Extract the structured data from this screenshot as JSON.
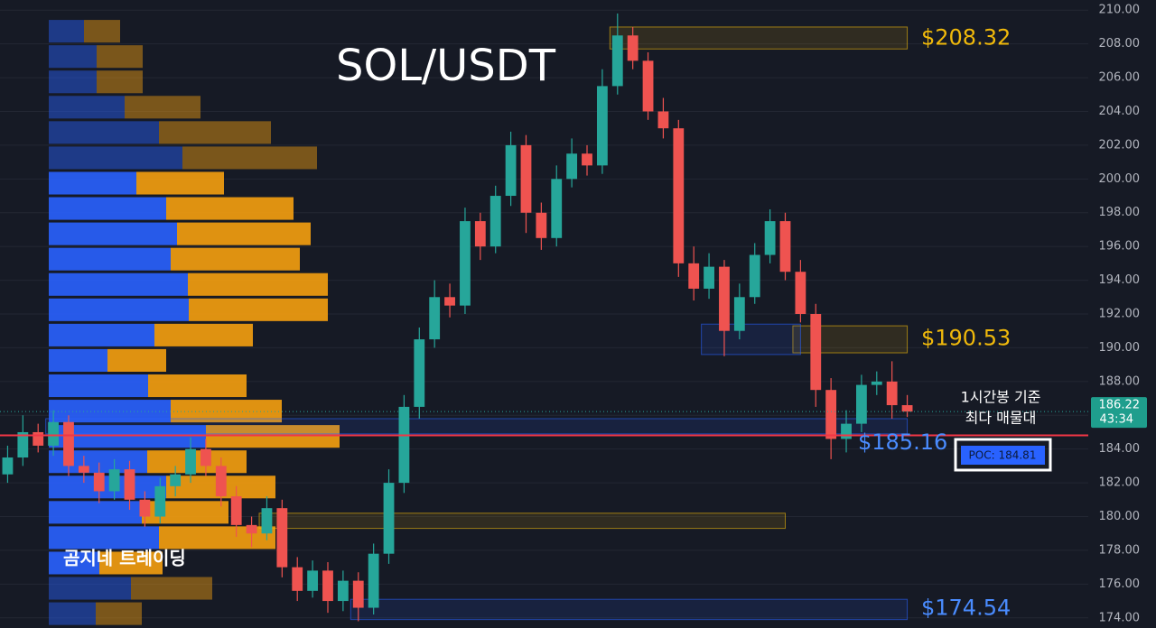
{
  "chart_data": {
    "type": "candlestick",
    "title": "SOL/USDT",
    "watermark": "곰지네 트레이딩",
    "annotation": [
      "1시간봉 기준",
      "최다 매물대"
    ],
    "ylim": [
      173.4,
      210.6
    ],
    "yticks": [
      {
        "value": 174,
        "label": "174.00"
      },
      {
        "value": 176,
        "label": "176.00"
      },
      {
        "value": 178,
        "label": "178.00"
      },
      {
        "value": 180,
        "label": "180.00"
      },
      {
        "value": 182,
        "label": "182.00"
      },
      {
        "value": 184,
        "label": "184.00"
      },
      {
        "value": 186,
        "label": "186.00"
      },
      {
        "value": 188,
        "label": "188.00"
      },
      {
        "value": 190,
        "label": "190.00"
      },
      {
        "value": 192,
        "label": "192.00"
      },
      {
        "value": 194,
        "label": "194.00"
      },
      {
        "value": 196,
        "label": "196.00"
      },
      {
        "value": 198,
        "label": "198.00"
      },
      {
        "value": 200,
        "label": "200.00"
      },
      {
        "value": 202,
        "label": "202.00"
      },
      {
        "value": 204,
        "label": "204.00"
      },
      {
        "value": 206,
        "label": "206.00"
      },
      {
        "value": 208,
        "label": "208.00"
      },
      {
        "value": 210,
        "label": "210.00"
      }
    ],
    "grid": true,
    "up_color": "#26a69a",
    "down_color": "#ef5350",
    "open": [
      182.5,
      183.5,
      185.0,
      184.2,
      185.6,
      183.0,
      182.6,
      181.5,
      182.8,
      181.0,
      180.0,
      181.8,
      182.5,
      184.0,
      183.0,
      181.2,
      179.5,
      179.0,
      180.5,
      177.0,
      175.6,
      176.8,
      175.0,
      176.2,
      174.6,
      177.8,
      182.0,
      186.5,
      190.5,
      193.0,
      192.5,
      197.5,
      196.0,
      199.0,
      202.0,
      198.0,
      196.5,
      200.0,
      201.5,
      200.8,
      205.5,
      208.5,
      207.0,
      204.0,
      203.0,
      195.0,
      193.5,
      194.8,
      191.0,
      193.0,
      195.5,
      197.5,
      194.5,
      192.0,
      187.5,
      184.6,
      185.5,
      187.8,
      188.0,
      186.6
    ],
    "high": [
      184.2,
      186.0,
      185.5,
      186.3,
      186.0,
      183.6,
      183.2,
      183.4,
      183.3,
      181.5,
      182.3,
      183.0,
      184.7,
      184.6,
      183.5,
      181.8,
      180.0,
      181.2,
      181.0,
      177.6,
      177.4,
      177.3,
      176.8,
      176.7,
      178.4,
      182.8,
      187.2,
      191.2,
      194.0,
      193.8,
      198.3,
      198.0,
      199.6,
      202.8,
      202.6,
      198.6,
      200.8,
      202.4,
      202.0,
      206.5,
      209.8,
      209.0,
      207.5,
      204.8,
      203.5,
      196.0,
      195.6,
      195.2,
      193.8,
      196.2,
      198.2,
      198.0,
      195.2,
      192.6,
      188.2,
      186.3,
      188.4,
      188.6,
      189.2,
      187.2
    ],
    "low": [
      182.0,
      183.0,
      183.8,
      183.6,
      182.4,
      182.0,
      180.8,
      181.0,
      180.4,
      179.4,
      179.6,
      181.2,
      182.0,
      182.4,
      180.6,
      178.8,
      178.2,
      178.6,
      176.4,
      175.0,
      175.2,
      174.3,
      174.4,
      173.8,
      174.2,
      177.2,
      181.4,
      185.8,
      190.0,
      191.8,
      192.0,
      195.2,
      195.6,
      198.4,
      196.8,
      195.8,
      196.0,
      199.5,
      200.2,
      200.3,
      205.0,
      206.5,
      203.5,
      202.4,
      194.2,
      192.8,
      192.9,
      189.5,
      190.5,
      192.6,
      195.0,
      194.0,
      191.5,
      186.5,
      183.4,
      183.8,
      185.0,
      187.2,
      185.8,
      185.9
    ],
    "close": [
      183.5,
      185.0,
      184.2,
      185.6,
      183.0,
      182.6,
      181.5,
      182.8,
      181.0,
      180.0,
      181.8,
      182.5,
      184.0,
      183.0,
      181.2,
      179.5,
      179.0,
      180.5,
      177.0,
      175.6,
      176.8,
      175.0,
      176.2,
      174.6,
      177.8,
      182.0,
      186.5,
      190.5,
      193.0,
      192.5,
      197.5,
      196.0,
      199.0,
      202.0,
      198.0,
      196.5,
      200.0,
      201.5,
      200.8,
      205.5,
      208.5,
      207.0,
      204.0,
      203.0,
      195.0,
      193.5,
      194.8,
      191.0,
      193.0,
      195.5,
      197.5,
      194.5,
      192.0,
      187.5,
      184.6,
      185.5,
      187.8,
      188.0,
      186.6,
      186.22
    ],
    "profile": {
      "bins": [
        173.5,
        175.0,
        176.5,
        178.0,
        179.5,
        181.0,
        182.5,
        184.0,
        185.5,
        187.0,
        188.5,
        190.0,
        191.5,
        193.0,
        194.5,
        196.0,
        197.5,
        199.0,
        200.5,
        202.0,
        203.5,
        205.0,
        206.5,
        208.0,
        209.5
      ],
      "buy": [
        52,
        91,
        56,
        122,
        103,
        130,
        109,
        174,
        135,
        110,
        65,
        117,
        155,
        154,
        135,
        142,
        130,
        97,
        148,
        122,
        84,
        53,
        53,
        39
      ],
      "sell": [
        51,
        90,
        70,
        129,
        96,
        121,
        110,
        148,
        123,
        109,
        65,
        109,
        154,
        155,
        143,
        148,
        141,
        97,
        149,
        124,
        84,
        51,
        51,
        40
      ]
    },
    "zones": [
      {
        "low": 207.7,
        "high": 209.0,
        "start": 40,
        "end": 59,
        "color": "#f0b90b"
      },
      {
        "low": 189.7,
        "high": 191.3,
        "start": 52,
        "end": 59,
        "color": "#f0b90b"
      },
      {
        "low": 189.6,
        "high": 191.4,
        "start": 46,
        "end": 52,
        "color": "#2962ff"
      },
      {
        "low": 184.9,
        "high": 185.8,
        "start": 3,
        "end": 59,
        "color": "#2962ff"
      },
      {
        "low": 179.3,
        "high": 180.2,
        "start": 17,
        "end": 51,
        "color": "#f0b90b"
      },
      {
        "low": 173.9,
        "high": 175.1,
        "start": 23,
        "end": 59,
        "color": "#2962ff"
      }
    ],
    "levels": [
      {
        "value": 208.32,
        "label": "$208.32",
        "color": "#f0b90b"
      },
      {
        "value": 190.53,
        "label": "$190.53",
        "color": "#f0b90b"
      },
      {
        "value": 185.16,
        "label": "$185.16",
        "color": "#4a8cff"
      },
      {
        "value": 174.54,
        "label": "$174.54",
        "color": "#4a8cff"
      }
    ],
    "poc": {
      "value": 184.81,
      "label": "POC: 184.81"
    },
    "last": {
      "value": 186.22,
      "label": "186.22",
      "timer": "43:34"
    }
  }
}
